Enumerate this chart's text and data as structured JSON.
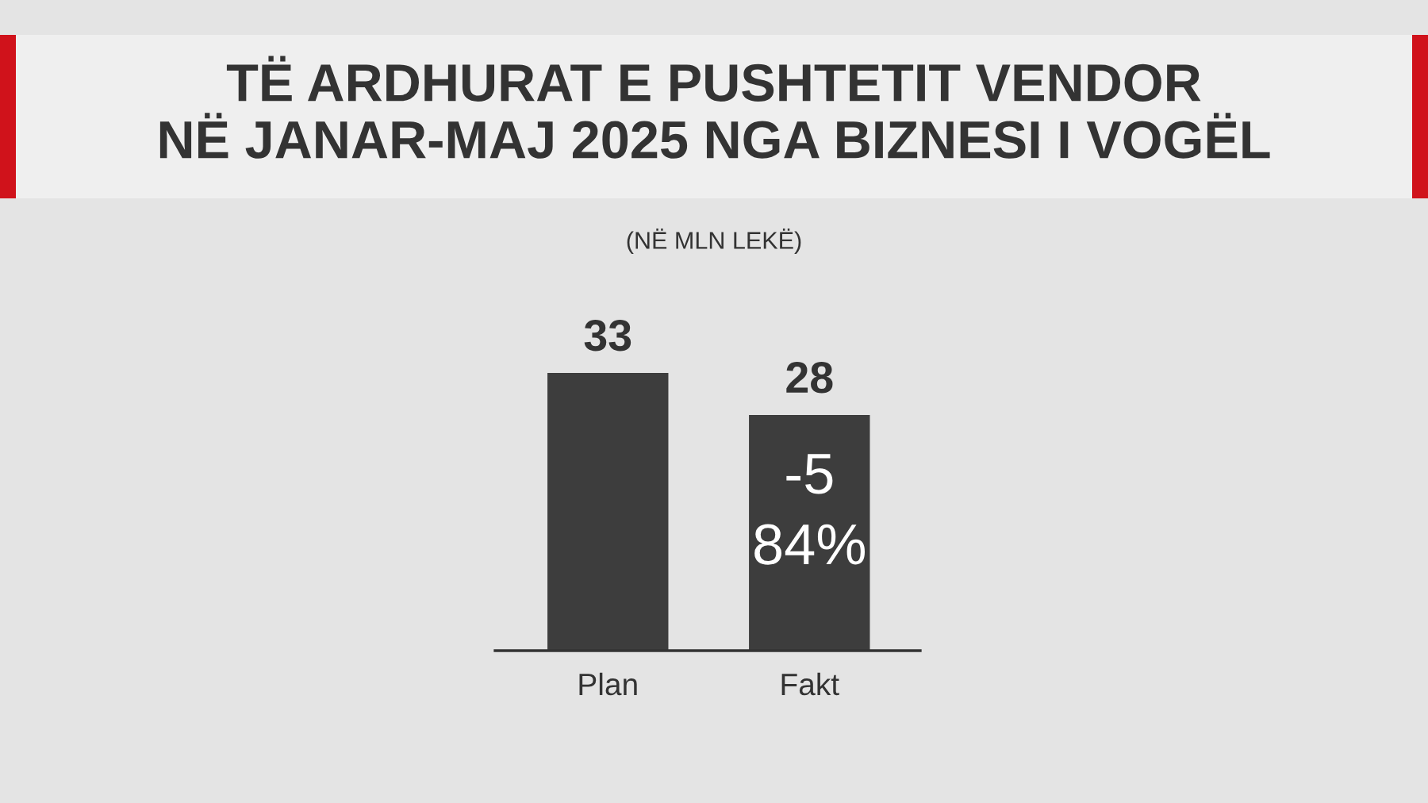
{
  "chart_data": {
    "type": "bar",
    "title": "TË ARDHURAT E PUSHTETIT VENDOR\nNË JANAR-MAJ 2025 NGA BIZNESI I VOGËL",
    "subtitle": "(NË MLN LEKË)",
    "categories": [
      "Plan",
      "Fakt"
    ],
    "values": [
      33,
      28
    ],
    "color": "#3d3d3d",
    "data_labels": true,
    "annotations": [
      "-5",
      "84%"
    ]
  }
}
